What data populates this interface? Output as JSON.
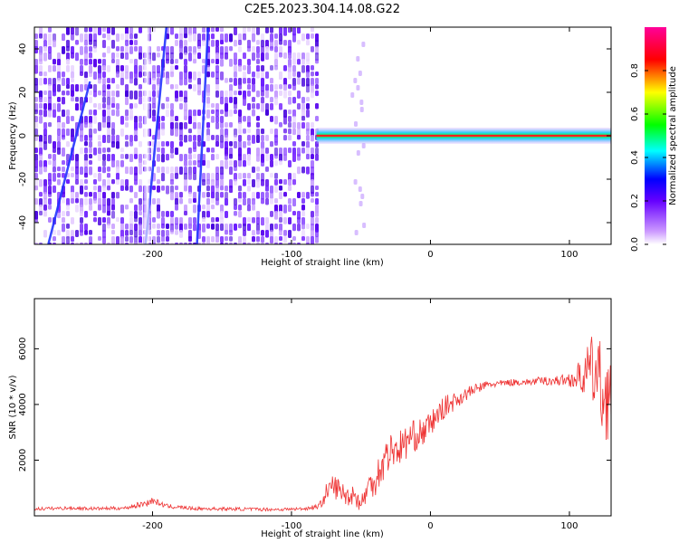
{
  "chart_data": [
    {
      "type": "heatmap",
      "title": "C2E5.2023.304.14.08.G22",
      "xlabel": "Height of straight line (km)",
      "ylabel": "Frequency (Hz)",
      "xlim": [
        -285,
        130
      ],
      "ylim": [
        -50,
        50
      ],
      "xticks": [
        -200,
        -100,
        0,
        100
      ],
      "yticks": [
        -40,
        -20,
        0,
        20,
        40
      ],
      "colorbar": {
        "label": "Normalized spectral amplitude",
        "range": [
          0,
          1
        ],
        "ticks": [
          0.0,
          0.2,
          0.4,
          0.6,
          0.8
        ],
        "colormap": [
          "#ffffff",
          "#cc99ff",
          "#6600ff",
          "#0000ff",
          "#00ffff",
          "#00ff00",
          "#ffff00",
          "#ff0000",
          "#ff00aa"
        ]
      },
      "regions": [
        {
          "x": [
            -285,
            -82
          ],
          "description_type": "noise",
          "level": 0.12
        },
        {
          "x": [
            -82,
            130
          ],
          "freq_line_hz": 0,
          "level": 0.9
        }
      ],
      "colors": {
        "noise": "#7a2bff",
        "line_core": "#ff2020"
      }
    },
    {
      "type": "line",
      "title": "",
      "xlabel": "Height of straight line (km)",
      "ylabel": "SNR (10 * v/v)",
      "xlim": [
        -285,
        130
      ],
      "ylim": [
        0,
        7800
      ],
      "xticks": [
        -200,
        -100,
        0,
        100
      ],
      "yticks": [
        2000,
        4000,
        6000
      ],
      "series": [
        {
          "color": "#ee3333",
          "x": [
            -285,
            -260,
            -240,
            -220,
            -205,
            -200,
            -190,
            -170,
            -150,
            -130,
            -110,
            -100,
            -90,
            -80,
            -75,
            -70,
            -65,
            -60,
            -55,
            -50,
            -45,
            -40,
            -35,
            -30,
            -25,
            -20,
            -15,
            -10,
            -5,
            0,
            10,
            20,
            30,
            40,
            50,
            60,
            70,
            80,
            90,
            100,
            110,
            115,
            120,
            125,
            130
          ],
          "y": [
            250,
            280,
            260,
            280,
            450,
            550,
            350,
            260,
            250,
            240,
            230,
            240,
            260,
            350,
            800,
            1100,
            900,
            700,
            800,
            400,
            1000,
            1300,
            1800,
            2300,
            2400,
            2500,
            2800,
            2900,
            3000,
            3300,
            3900,
            4200,
            4500,
            4700,
            4750,
            4800,
            4800,
            4850,
            4850,
            4900,
            5000,
            5300,
            5000,
            4300,
            4200
          ],
          "noise": [
            60,
            60,
            60,
            60,
            120,
            120,
            80,
            60,
            60,
            60,
            60,
            60,
            60,
            100,
            350,
            450,
            400,
            350,
            400,
            300,
            500,
            600,
            700,
            700,
            650,
            650,
            600,
            550,
            500,
            450,
            400,
            300,
            200,
            150,
            120,
            120,
            120,
            150,
            180,
            250,
            700,
            1100,
            1600,
            1600,
            1400
          ]
        }
      ]
    }
  ]
}
